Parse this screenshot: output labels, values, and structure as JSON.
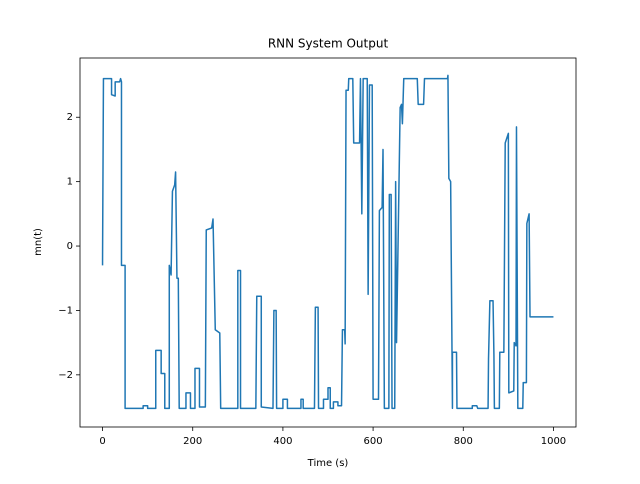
{
  "chart_data": {
    "type": "line",
    "title": "RNN System Output",
    "xlabel": "Time (s)",
    "ylabel": "mn(t)",
    "xlim": [
      -50,
      1050
    ],
    "ylim": [
      -2.81,
      2.92
    ],
    "xticks": [
      0,
      200,
      400,
      600,
      800,
      1000
    ],
    "yticks": [
      {
        "value": -2,
        "label": "−2"
      },
      {
        "value": -1,
        "label": "−1"
      },
      0,
      1,
      2
    ],
    "series": [
      {
        "color": "#1f77b4",
        "x": [
          0,
          0,
          2,
          20,
          20,
          28,
          28,
          38,
          40,
          42,
          42,
          50,
          50,
          90,
          90,
          100,
          100,
          118,
          118,
          130,
          130,
          138,
          138,
          148,
          148,
          152,
          155,
          160,
          162,
          165,
          168,
          170,
          185,
          185,
          195,
          195,
          205,
          205,
          215,
          215,
          228,
          230,
          242,
          245,
          250,
          260,
          262,
          300,
          300,
          306,
          306,
          340,
          342,
          352,
          352,
          378,
          380,
          385,
          386,
          400,
          400,
          410,
          410,
          440,
          440,
          445,
          445,
          470,
          472,
          478,
          479,
          490,
          490,
          500,
          500,
          505,
          505,
          512,
          512,
          522,
          522,
          530,
          532,
          537,
          538,
          540,
          545,
          546,
          555,
          557,
          570,
          572,
          575,
          578,
          587,
          589,
          592,
          598,
          600,
          612,
          614,
          620,
          622,
          625,
          635,
          636,
          640,
          642,
          648,
          650,
          652,
          660,
          663,
          665,
          668,
          698,
          700,
          712,
          714,
          765,
          766,
          768,
          772,
          776,
          776,
          785,
          786,
          820,
          820,
          830,
          832,
          855,
          856,
          859,
          866,
          868,
          869,
          880,
          881,
          890,
          893,
          900,
          901,
          912,
          913,
          917,
          918,
          921,
          932,
          933,
          940,
          941,
          946,
          948,
          1000
        ],
        "values": [
          -0.3,
          -0.22,
          2.6,
          2.6,
          2.35,
          2.33,
          2.55,
          2.55,
          2.6,
          2.55,
          -0.3,
          -0.3,
          -2.52,
          -2.52,
          -2.48,
          -2.48,
          -2.52,
          -2.52,
          -1.62,
          -1.62,
          -1.98,
          -1.98,
          -2.52,
          -2.52,
          -0.3,
          -0.45,
          0.85,
          0.95,
          1.15,
          -0.5,
          -0.5,
          -2.52,
          -2.52,
          -2.28,
          -2.28,
          -2.52,
          -2.52,
          -1.9,
          -1.9,
          -2.5,
          -2.5,
          0.25,
          0.28,
          0.42,
          -1.3,
          -1.35,
          -2.52,
          -2.52,
          -0.38,
          -0.38,
          -2.52,
          -2.52,
          -0.78,
          -0.78,
          -2.5,
          -2.52,
          -1.0,
          -1.0,
          -2.52,
          -2.52,
          -2.38,
          -2.38,
          -2.52,
          -2.52,
          -2.38,
          -2.38,
          -2.52,
          -2.52,
          -0.95,
          -0.95,
          -2.52,
          -2.52,
          -2.38,
          -2.38,
          -2.2,
          -2.2,
          -2.52,
          -2.52,
          -2.42,
          -2.42,
          -2.48,
          -2.48,
          -1.3,
          -1.3,
          -1.52,
          2.42,
          2.42,
          2.6,
          2.6,
          1.6,
          1.6,
          2.6,
          0.5,
          2.6,
          2.6,
          -0.75,
          2.5,
          2.5,
          -2.38,
          -2.38,
          0.55,
          0.6,
          1.5,
          -2.52,
          -2.52,
          0.8,
          0.8,
          -2.52,
          -2.52,
          1.0,
          -1.5,
          2.15,
          2.2,
          1.9,
          2.6,
          2.6,
          2.2,
          2.2,
          2.6,
          2.6,
          2.65,
          1.05,
          1.0,
          -2.52,
          -1.65,
          -1.65,
          -2.52,
          -2.52,
          -2.48,
          -2.48,
          -2.52,
          -2.52,
          -1.75,
          -0.85,
          -0.85,
          -1.7,
          -2.52,
          -2.52,
          -1.65,
          -1.65,
          1.6,
          1.75,
          -2.28,
          -2.25,
          -1.5,
          -1.55,
          1.85,
          -2.52,
          -2.52,
          -2.12,
          -2.12,
          0.35,
          0.5,
          -1.1,
          -1.1
        ]
      }
    ]
  }
}
